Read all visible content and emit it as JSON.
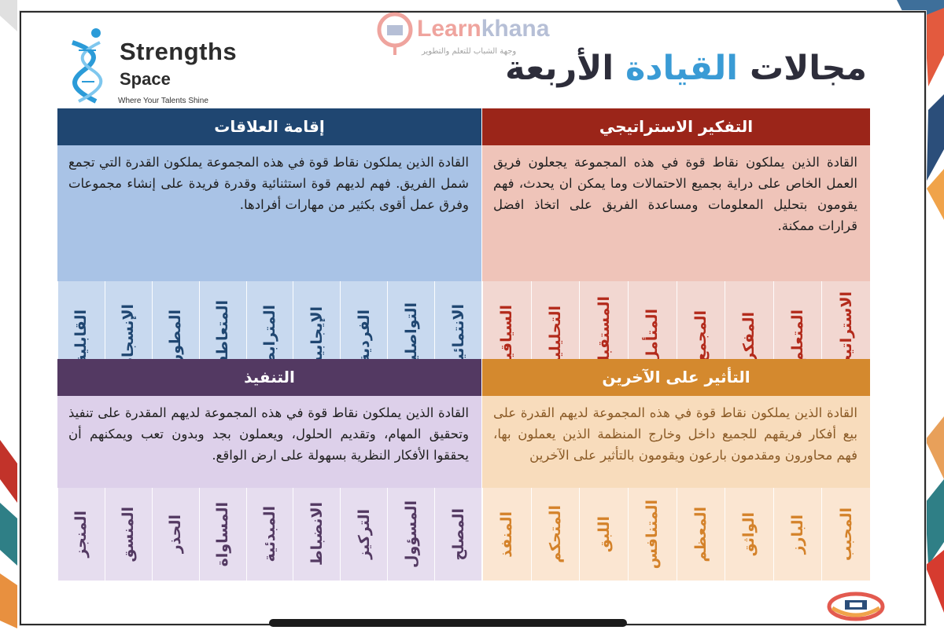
{
  "header": {
    "title_prefix": "مجالات ",
    "title_accent": "القيادة",
    "title_suffix": " الأربعة"
  },
  "logo": {
    "name": "Strengths",
    "sub": "Space",
    "tagline": "Where Your Talents Shine"
  },
  "brand": {
    "name_part1": "Learn",
    "name_part2": "khana",
    "subtitle": "وجهة الشباب للتعلم والتطوير"
  },
  "colors": {
    "strategic": "#9b2519",
    "relationships": "#1f4671",
    "influencing": "#d4892e",
    "executing": "#533962",
    "title_accent": "#3a9bd5"
  },
  "domains": {
    "strategic": {
      "title": "التفكير الاستراتيجي",
      "description": "القادة الذين يملكون نقاط قوة في هذه المجموعة يجعلون فريق العمل الخاص على دراية بجميع الاحتمالات وما يمكن ان يحدث، فهم يقومون بتحليل المعلومات ومساعدة الفريق على اتخاذ افضل قرارات ممكنة.",
      "strengths": [
        "الاستراتيجية",
        "المتعلم",
        "المفكر",
        "المجمع",
        "المتأمل",
        "المستقبلية",
        "التحليلية",
        "السياقية"
      ]
    },
    "relationships": {
      "title": "إقامة العلاقات",
      "description": "القادة الذين يملكون نقاط قوة في هذه المجموعة يملكون القدرة التي تجمع شمل الفريق. فهم لديهم قوة استثنائية وقدرة فريدة على إنشاء مجموعات وفرق عمل أقوى بكثير من مهارات أفرادها.",
      "strengths": [
        "الانتمائية",
        "التواصلية",
        "الفردية",
        "الإيجابية",
        "المترابط",
        "المتعاطف",
        "المطور",
        "الإنسجام",
        "القابلية"
      ]
    },
    "influencing": {
      "title": "التأثير على الآخرين",
      "description": "القادة الذين يملكون نقاط قوة في هذه المجموعة لديهم القدرة على بيع أفكار فريقهم للجميع داخل وخارج المنظمة الذين يعملون بها، فهم محاورون ومقدمون بارعون ويقومون بالتأثير على الآخرين",
      "strengths": [
        "المحبب",
        "البارز",
        "الواثق",
        "المعظم",
        "المتنافس",
        "اللبق",
        "المتحكم",
        "المنفذ"
      ]
    },
    "executing": {
      "title": "التنفيذ",
      "description": "القادة الذين يملكون نقاط قوة في هذه المجموعة لديهم المقدرة على تنفيذ وتحقيق المهام، وتقديم الحلول، ويعملون بجد وبدون تعب ويمكنهم أن يحققوا الأفكار النظرية بسهولة على ارض الواقع.",
      "strengths": [
        "المصلح",
        "المسؤول",
        "التركيز",
        "الانضباط",
        "المبدئية",
        "المساواة",
        "الحذر",
        "المنسق",
        "المنجز"
      ]
    }
  }
}
